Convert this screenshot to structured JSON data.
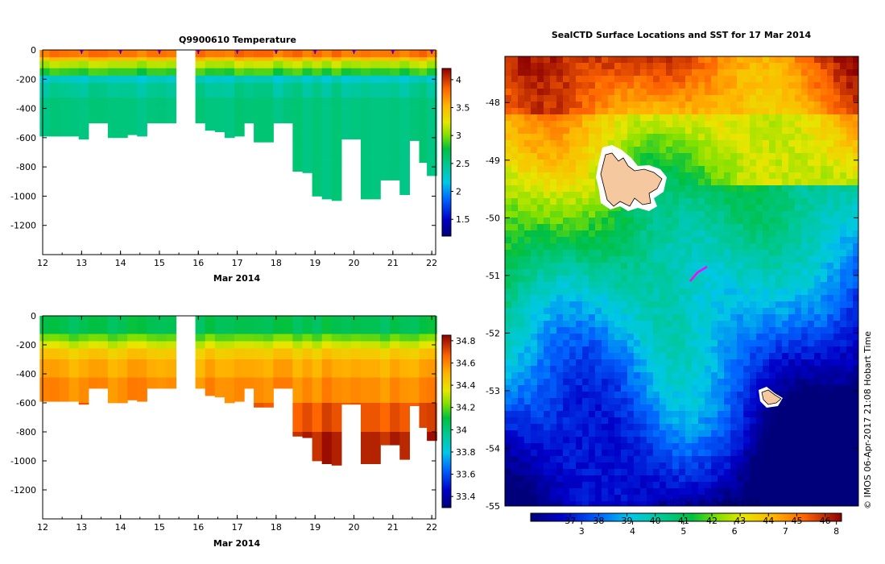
{
  "chart_data": [
    {
      "type": "heatmap",
      "title": "Q9900610  Temperature",
      "xlabel": "Mar 2014",
      "ylabel": "",
      "xlim": [
        12,
        22.1
      ],
      "ylim": [
        -1400,
        0
      ],
      "x_ticks": [
        "12",
        "13",
        "14",
        "15",
        "16",
        "17",
        "18",
        "19",
        "20",
        "21",
        "22"
      ],
      "y_ticks": [
        "0",
        "-200",
        "-400",
        "-600",
        "-800",
        "-1000",
        "-1200"
      ],
      "colorbar": {
        "min": 1.2,
        "max": 4.2,
        "ticks": [
          "1.5",
          "2",
          "2.5",
          "3",
          "3.5",
          "4"
        ]
      },
      "profile_dates": [
        12.05,
        12.3,
        12.55,
        12.8,
        13.05,
        13.3,
        13.55,
        13.8,
        14.05,
        14.3,
        14.55,
        14.8,
        15.05,
        15.3,
        16.05,
        16.3,
        16.55,
        16.8,
        17.05,
        17.3,
        17.55,
        17.8,
        18.05,
        18.3,
        18.55,
        18.8,
        19.05,
        19.3,
        19.55,
        19.8,
        20.05,
        20.3,
        20.55,
        20.8,
        21.05,
        21.3,
        21.55,
        21.8,
        22.0
      ],
      "profile_max_depth": [
        590,
        590,
        590,
        590,
        610,
        500,
        500,
        600,
        600,
        580,
        590,
        500,
        500,
        500,
        500,
        550,
        560,
        600,
        590,
        500,
        630,
        630,
        500,
        500,
        830,
        840,
        1000,
        1020,
        1030,
        610,
        610,
        1020,
        1020,
        890,
        890,
        990,
        620,
        770,
        860
      ],
      "profile_markers": [
        13.0,
        14.0,
        15.0,
        16.0,
        17.0,
        18.0,
        19.0,
        20.0,
        21.0,
        22.0
      ]
    },
    {
      "type": "heatmap",
      "title": "",
      "xlabel": "Mar 2014",
      "ylabel": "",
      "xlim": [
        12,
        22.1
      ],
      "ylim": [
        -1400,
        0
      ],
      "x_ticks": [
        "12",
        "13",
        "14",
        "15",
        "16",
        "17",
        "18",
        "19",
        "20",
        "21",
        "22"
      ],
      "y_ticks": [
        "0",
        "-200",
        "-400",
        "-600",
        "-800",
        "-1000",
        "-1200"
      ],
      "colorbar": {
        "min": 33.3,
        "max": 34.85,
        "ticks": [
          "33.4",
          "33.6",
          "33.8",
          "34",
          "34.2",
          "34.4",
          "34.6",
          "34.8"
        ]
      },
      "profile_dates": [
        12.05,
        12.3,
        12.55,
        12.8,
        13.05,
        13.3,
        13.55,
        13.8,
        14.05,
        14.3,
        14.55,
        14.8,
        15.05,
        15.3,
        16.05,
        16.3,
        16.55,
        16.8,
        17.05,
        17.3,
        17.55,
        17.8,
        18.05,
        18.3,
        18.55,
        18.8,
        19.05,
        19.3,
        19.55,
        19.8,
        20.05,
        20.3,
        20.55,
        20.8,
        21.05,
        21.3,
        21.55,
        21.8,
        22.0
      ],
      "profile_max_depth": [
        590,
        590,
        590,
        590,
        610,
        500,
        500,
        600,
        600,
        580,
        590,
        500,
        500,
        500,
        500,
        550,
        560,
        600,
        590,
        500,
        630,
        630,
        500,
        500,
        830,
        840,
        1000,
        1020,
        1030,
        610,
        610,
        1020,
        1020,
        890,
        890,
        990,
        620,
        770,
        860
      ]
    },
    {
      "type": "heatmap",
      "title": "SealCTD Surface Locations and SST for 17 Mar 2014",
      "xlabel": "",
      "ylabel": "",
      "ylim": [
        -55,
        -47.2
      ],
      "y_ticks": [
        "-48",
        "-49",
        "-50",
        "-51",
        "-52",
        "-53",
        "-54",
        "-55"
      ],
      "colorbar_title": "GHRSST mUR SST (°C)",
      "colorbar": {
        "min": 2.0,
        "max": 8.1,
        "ticks_celsius": [
          "3",
          "4",
          "5",
          "6",
          "7",
          "8"
        ],
        "ticks_fahrenheit": [
          "37",
          "38",
          "39",
          "40",
          "41",
          "42",
          "43",
          "44",
          "45",
          "46"
        ]
      },
      "seal_track": [
        [
          -51.1,
          0.0
        ],
        [
          -50.95,
          0.15
        ],
        [
          -50.85,
          0.35
        ]
      ]
    }
  ],
  "footer": {
    "credit": "© IMOS 06-Apr-2017 21:08 Hobart Time"
  }
}
